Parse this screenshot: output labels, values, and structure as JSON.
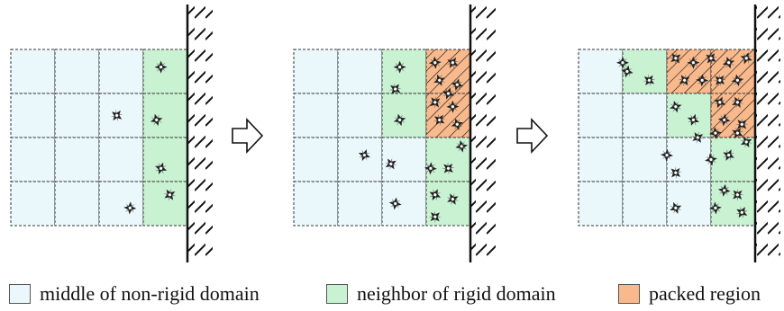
{
  "colors": {
    "middle": "#eaf8fc",
    "neighbor": "#c8f2d2",
    "packed": "#f8b98c",
    "grid": "#333333",
    "wall": "#111111"
  },
  "legend": [
    {
      "key": "middle",
      "label": "middle of non-rigid domain"
    },
    {
      "key": "neighbor",
      "label": "neighbor of rigid domain"
    },
    {
      "key": "packed",
      "label": "packed region"
    }
  ],
  "icons": [
    "particle-icon",
    "right-arrow-icon",
    "rigid-wall-icon"
  ],
  "panels": [
    {
      "cells": [
        [
          "middle",
          "middle",
          "middle",
          "neighbor"
        ],
        [
          "middle",
          "middle",
          "middle",
          "neighbor"
        ],
        [
          "middle",
          "middle",
          "middle",
          "neighbor"
        ],
        [
          "middle",
          "middle",
          "middle",
          "neighbor"
        ]
      ],
      "particles": [
        [
          3.4,
          0.4
        ],
        [
          2.4,
          1.5
        ],
        [
          3.3,
          1.6
        ],
        [
          3.4,
          2.7
        ],
        [
          3.6,
          3.3
        ],
        [
          2.7,
          3.6
        ]
      ]
    },
    {
      "cells": [
        [
          "middle",
          "middle",
          "neighbor",
          "packed"
        ],
        [
          "middle",
          "middle",
          "neighbor",
          "packed"
        ],
        [
          "middle",
          "middle",
          "middle",
          "neighbor"
        ],
        [
          "middle",
          "middle",
          "middle",
          "neighbor"
        ]
      ],
      "particles": [
        [
          2.4,
          0.4
        ],
        [
          2.3,
          0.9
        ],
        [
          2.4,
          1.6
        ],
        [
          1.6,
          2.4
        ],
        [
          2.2,
          2.6
        ],
        [
          3.1,
          2.7
        ],
        [
          3.5,
          2.7
        ],
        [
          3.8,
          2.2
        ],
        [
          3.2,
          3.3
        ],
        [
          3.6,
          3.4
        ],
        [
          2.3,
          3.5
        ],
        [
          3.2,
          3.8
        ]
      ],
      "packed_particles": [
        [
          3.2,
          0.3
        ],
        [
          3.6,
          0.3
        ],
        [
          3.3,
          0.7
        ],
        [
          3.7,
          0.8
        ],
        [
          3.2,
          1.2
        ],
        [
          3.6,
          1.3
        ],
        [
          3.3,
          1.6
        ],
        [
          3.7,
          1.7
        ],
        [
          3.5,
          1.0
        ]
      ]
    },
    {
      "cells": [
        [
          "middle",
          "neighbor",
          "packed",
          "packed"
        ],
        [
          "middle",
          "middle",
          "neighbor",
          "packed"
        ],
        [
          "middle",
          "middle",
          "middle",
          "neighbor"
        ],
        [
          "middle",
          "middle",
          "middle",
          "neighbor"
        ]
      ],
      "particles": [
        [
          1.0,
          0.3
        ],
        [
          1.6,
          0.7
        ],
        [
          2.2,
          1.3
        ],
        [
          2.6,
          1.6
        ],
        [
          2.7,
          2.0
        ],
        [
          2.0,
          2.4
        ],
        [
          2.2,
          2.8
        ],
        [
          3.0,
          2.5
        ],
        [
          3.4,
          2.4
        ],
        [
          3.8,
          2.1
        ],
        [
          3.3,
          3.2
        ],
        [
          3.6,
          3.3
        ],
        [
          3.1,
          3.6
        ],
        [
          3.7,
          3.7
        ],
        [
          2.2,
          3.6
        ],
        [
          1.1,
          0.5
        ]
      ],
      "packed_particles": [
        [
          2.2,
          0.2
        ],
        [
          2.6,
          0.3
        ],
        [
          3.0,
          0.2
        ],
        [
          3.4,
          0.3
        ],
        [
          3.8,
          0.2
        ],
        [
          2.4,
          0.7
        ],
        [
          2.8,
          0.7
        ],
        [
          3.2,
          0.7
        ],
        [
          3.6,
          0.7
        ],
        [
          3.2,
          1.2
        ],
        [
          3.6,
          1.2
        ],
        [
          3.3,
          1.6
        ],
        [
          3.7,
          1.7
        ],
        [
          3.1,
          1.9
        ],
        [
          3.6,
          1.9
        ]
      ]
    }
  ]
}
